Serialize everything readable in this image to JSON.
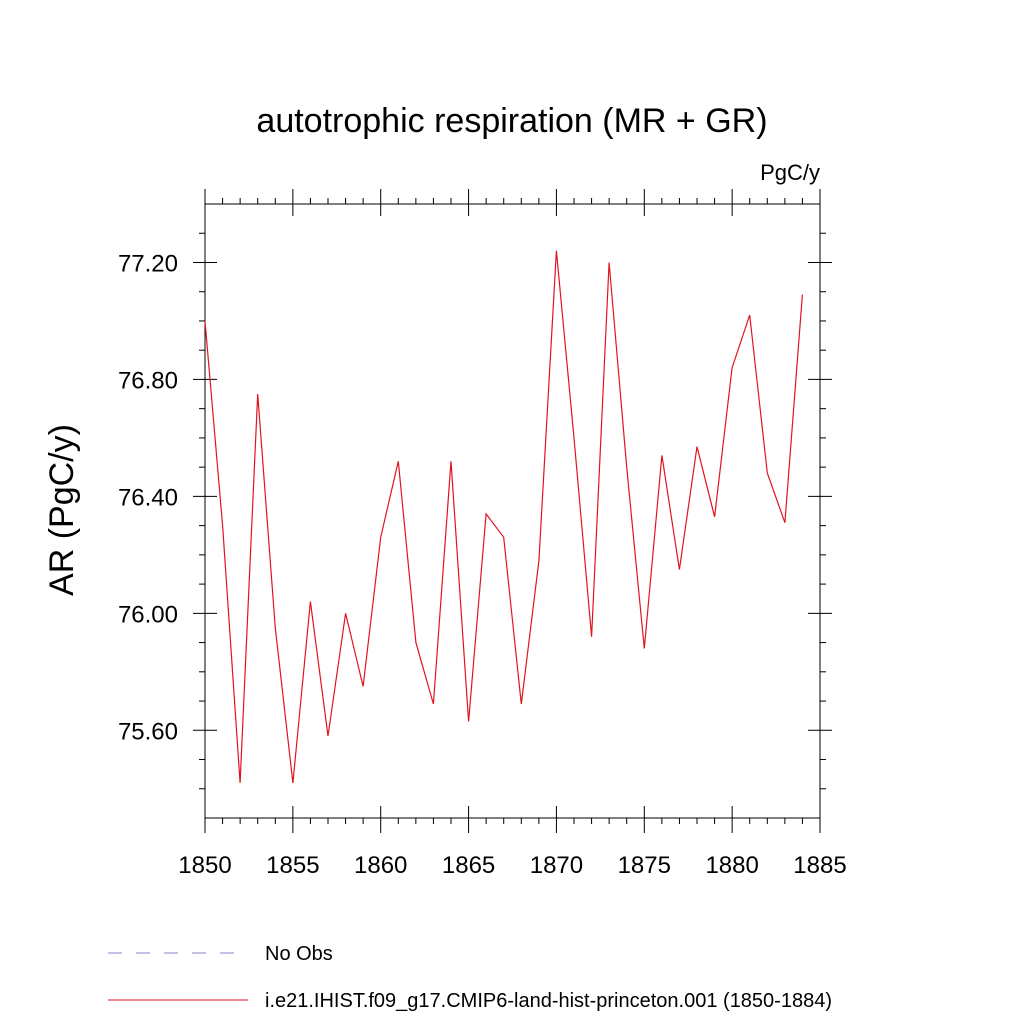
{
  "chart_data": {
    "type": "line",
    "title": "autotrophic respiration (MR + GR)",
    "units": "PgC/y",
    "ylabel": "AR  (PgC/y)",
    "xlabel": "",
    "xlim": [
      1850,
      1885
    ],
    "ylim": [
      75.3,
      77.4
    ],
    "x_ticks": [
      1850,
      1855,
      1860,
      1865,
      1870,
      1875,
      1880,
      1885
    ],
    "x_tick_labels": [
      "1850",
      "1855",
      "1860",
      "1865",
      "1870",
      "1875",
      "1880",
      "1885"
    ],
    "y_ticks": [
      75.6,
      76.0,
      76.4,
      76.8,
      77.2
    ],
    "y_tick_labels": [
      "75.60",
      "76.00",
      "76.40",
      "76.80",
      "77.20"
    ],
    "grid": false,
    "legend_position": "bottom",
    "series": [
      {
        "name": "i.e21.IHIST.f09_g17.CMIP6-land-hist-princeton.001 (1850-1884)",
        "color": "#e0141e",
        "style": "solid",
        "x": [
          1850,
          1851,
          1852,
          1853,
          1854,
          1855,
          1856,
          1857,
          1858,
          1859,
          1860,
          1861,
          1862,
          1863,
          1864,
          1865,
          1866,
          1867,
          1868,
          1869,
          1870,
          1871,
          1872,
          1873,
          1874,
          1875,
          1876,
          1877,
          1878,
          1879,
          1880,
          1881,
          1882,
          1883,
          1884
        ],
        "values": [
          77.0,
          76.3,
          75.42,
          76.75,
          75.95,
          75.42,
          76.04,
          75.58,
          76.0,
          75.75,
          76.26,
          76.52,
          75.9,
          75.69,
          76.52,
          75.63,
          76.34,
          76.26,
          75.69,
          76.18,
          77.24,
          76.6,
          75.92,
          77.2,
          76.5,
          75.88,
          76.54,
          76.15,
          76.57,
          76.33,
          76.84,
          77.02,
          76.48,
          76.31,
          77.09
        ]
      },
      {
        "name": "No Obs",
        "color": "#8a86c9",
        "style": "dashed",
        "x": [],
        "values": []
      }
    ]
  }
}
